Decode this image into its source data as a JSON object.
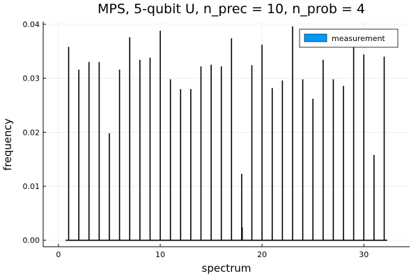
{
  "chart_data": {
    "type": "bar",
    "title": "MPS, 5-qubit U, n_prec = 10, n_prob = 4",
    "xlabel": "spectrum",
    "ylabel": "frequency",
    "xlim": [
      -1.5,
      34.5
    ],
    "ylim": [
      -0.0012,
      0.0405
    ],
    "xticks": [
      0,
      10,
      20,
      30
    ],
    "xtick_labels": [
      "0",
      "10",
      "20",
      "30"
    ],
    "yticks": [
      0.0,
      0.01,
      0.02,
      0.03,
      0.04
    ],
    "ytick_labels": [
      "0.00",
      "0.01",
      "0.02",
      "0.03",
      "0.04"
    ],
    "grid": true,
    "legend_position": "top-right",
    "baseline_range": [
      0.7,
      32.3
    ],
    "series": [
      {
        "name": "measurement",
        "color": "#009af9",
        "x": [
          1,
          2,
          3,
          4,
          5,
          6,
          7,
          8,
          9,
          10,
          11,
          12,
          13,
          14,
          15,
          16,
          17,
          18,
          18.05,
          19,
          20,
          21,
          22,
          23,
          24,
          25,
          26,
          27,
          28,
          29,
          30,
          31,
          32
        ],
        "values": [
          0.0358,
          0.0316,
          0.033,
          0.033,
          0.0198,
          0.0316,
          0.0376,
          0.0334,
          0.0338,
          0.0388,
          0.0298,
          0.028,
          0.028,
          0.0322,
          0.0325,
          0.0322,
          0.0374,
          0.0123,
          0.0024,
          0.0324,
          0.0362,
          0.0282,
          0.0296,
          0.0396,
          0.0298,
          0.0262,
          0.0334,
          0.0298,
          0.0286,
          0.0362,
          0.0344,
          0.0158,
          0.034
        ]
      }
    ]
  }
}
